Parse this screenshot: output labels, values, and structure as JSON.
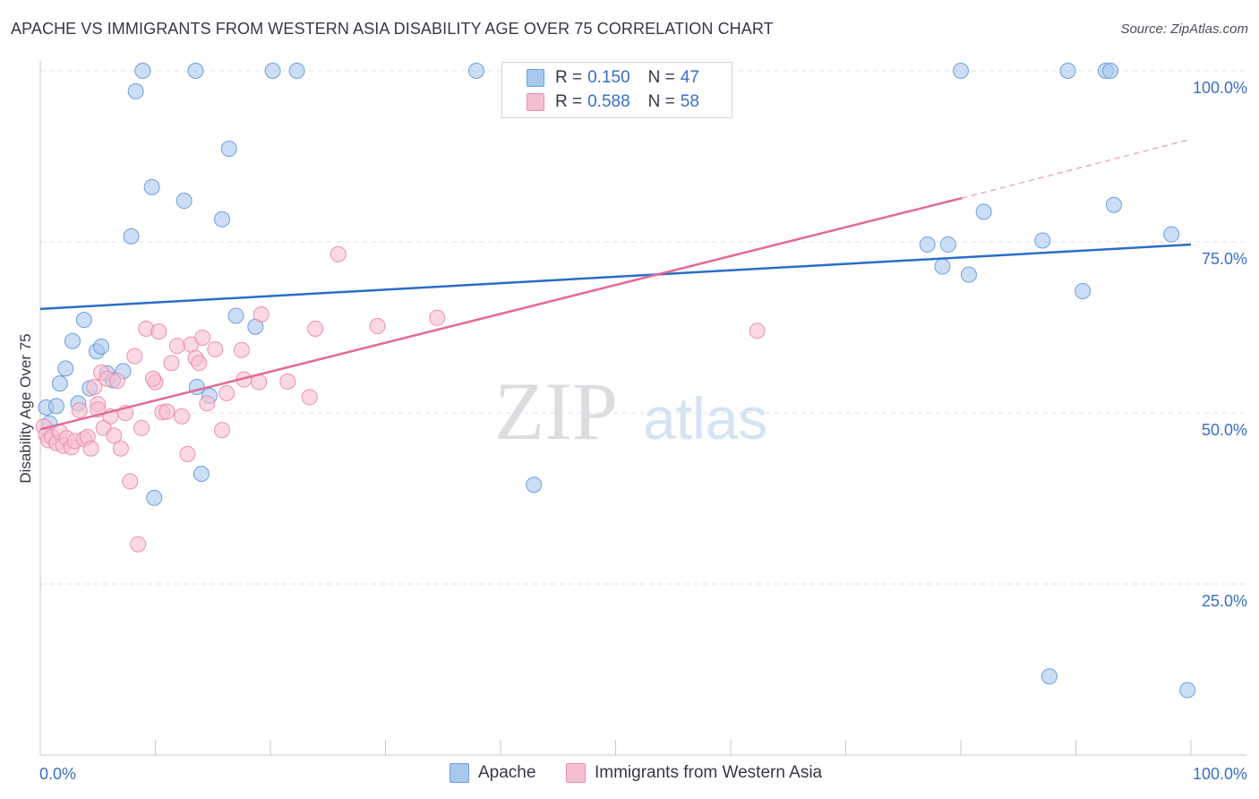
{
  "title": "APACHE VS IMMIGRANTS FROM WESTERN ASIA DISABILITY AGE OVER 75 CORRELATION CHART",
  "source": "Source: ZipAtlas.com",
  "watermark": {
    "zip": "ZIP",
    "atlas": "atlas"
  },
  "legend": {
    "apache": {
      "r_label": "R =",
      "r_value": "0.150",
      "n_label": "N =",
      "n_value": "47"
    },
    "immigrants": {
      "r_label": "R =",
      "r_value": "0.588",
      "n_label": "N =",
      "n_value": "58"
    }
  },
  "bottom_legend": {
    "apache": "Apache",
    "immigrants": "Immigrants from Western Asia"
  },
  "colors": {
    "apache_fill": "#a9c8ee",
    "apache_stroke": "#6f9fdc",
    "apache_line": "#2a6dc8",
    "immigrants_fill": "#f6bfd0",
    "immigrants_stroke": "#ec8fae",
    "immigrants_line": "#e26a97",
    "axis_text": "#3a6fc4",
    "grid": "#dfe2e6"
  },
  "chart_data": {
    "type": "scatter",
    "title": "APACHE VS IMMIGRANTS FROM WESTERN ASIA DISABILITY AGE OVER 75 CORRELATION CHART",
    "xlabel": "",
    "ylabel": "Disability Age Over 75",
    "xlim": [
      0,
      100
    ],
    "ylim": [
      0,
      105
    ],
    "x_tick_labels": [
      "0.0%",
      "100.0%"
    ],
    "y_ticks": [
      25,
      50,
      75,
      100
    ],
    "y_tick_labels": [
      "25.0%",
      "50.0%",
      "75.0%",
      "100.0%"
    ],
    "grid": true,
    "legend_position": "top-center",
    "series": [
      {
        "name": "Apache",
        "r": 0.15,
        "n": 47,
        "trend": {
          "x": [
            0,
            100
          ],
          "y": [
            65.2,
            74.6
          ],
          "dashed_from": null
        },
        "points": [
          [
            0.5,
            50.8
          ],
          [
            0.8,
            48.5
          ],
          [
            1.4,
            51.0
          ],
          [
            1.7,
            54.3
          ],
          [
            2.2,
            56.5
          ],
          [
            2.8,
            60.5
          ],
          [
            3.3,
            51.4
          ],
          [
            3.8,
            63.6
          ],
          [
            4.3,
            53.6
          ],
          [
            4.9,
            59.0
          ],
          [
            5.3,
            59.7
          ],
          [
            5.8,
            55.8
          ],
          [
            6.3,
            54.8
          ],
          [
            7.2,
            56.1
          ],
          [
            7.9,
            75.8
          ],
          [
            8.3,
            97.0
          ],
          [
            8.9,
            100.0
          ],
          [
            9.7,
            83.0
          ],
          [
            9.9,
            37.6
          ],
          [
            12.5,
            81.0
          ],
          [
            13.5,
            100.0
          ],
          [
            13.6,
            53.8
          ],
          [
            14.0,
            41.1
          ],
          [
            14.7,
            52.5
          ],
          [
            15.8,
            78.3
          ],
          [
            16.4,
            88.6
          ],
          [
            17.0,
            64.2
          ],
          [
            18.7,
            62.6
          ],
          [
            20.2,
            100.0
          ],
          [
            22.3,
            100.0
          ],
          [
            37.9,
            100.0
          ],
          [
            42.9,
            39.5
          ],
          [
            77.1,
            74.6
          ],
          [
            78.4,
            71.4
          ],
          [
            78.9,
            74.6
          ],
          [
            80.0,
            100.0
          ],
          [
            80.7,
            70.2
          ],
          [
            82.0,
            79.4
          ],
          [
            87.1,
            75.2
          ],
          [
            87.7,
            11.5
          ],
          [
            89.3,
            100.0
          ],
          [
            90.6,
            67.8
          ],
          [
            92.6,
            100.0
          ],
          [
            93.0,
            100.0
          ],
          [
            93.3,
            80.4
          ],
          [
            98.3,
            76.1
          ],
          [
            99.7,
            9.5
          ]
        ]
      },
      {
        "name": "Immigrants from Western Asia",
        "r": 0.588,
        "n": 58,
        "trend": {
          "x": [
            0,
            80.1
          ],
          "y": [
            47.6,
            81.4
          ],
          "dash_x": [
            80.1,
            100
          ],
          "dash_y": [
            81.4,
            90.0
          ]
        },
        "points": [
          [
            0.3,
            48.0
          ],
          [
            0.5,
            46.8
          ],
          [
            0.7,
            46.0
          ],
          [
            1.0,
            46.5
          ],
          [
            1.4,
            45.6
          ],
          [
            1.7,
            47.2
          ],
          [
            2.0,
            45.2
          ],
          [
            2.3,
            46.3
          ],
          [
            2.7,
            45.0
          ],
          [
            3.0,
            45.9
          ],
          [
            3.4,
            50.4
          ],
          [
            3.8,
            46.2
          ],
          [
            4.1,
            46.5
          ],
          [
            4.4,
            44.8
          ],
          [
            4.7,
            53.8
          ],
          [
            5.0,
            51.3
          ],
          [
            5.3,
            55.9
          ],
          [
            5.5,
            47.8
          ],
          [
            5.8,
            55.0
          ],
          [
            6.1,
            49.5
          ],
          [
            6.4,
            46.7
          ],
          [
            6.7,
            54.7
          ],
          [
            7.0,
            44.8
          ],
          [
            7.4,
            50.0
          ],
          [
            7.8,
            40.0
          ],
          [
            8.2,
            58.3
          ],
          [
            8.5,
            30.8
          ],
          [
            8.8,
            47.8
          ],
          [
            9.2,
            62.3
          ],
          [
            10.0,
            54.5
          ],
          [
            10.3,
            61.9
          ],
          [
            10.6,
            50.1
          ],
          [
            11.0,
            50.2
          ],
          [
            11.4,
            57.3
          ],
          [
            11.9,
            59.8
          ],
          [
            12.3,
            49.5
          ],
          [
            12.8,
            44.0
          ],
          [
            13.1,
            60.0
          ],
          [
            13.5,
            58.0
          ],
          [
            13.8,
            57.3
          ],
          [
            14.1,
            61.0
          ],
          [
            14.5,
            51.4
          ],
          [
            15.2,
            59.3
          ],
          [
            15.8,
            47.5
          ],
          [
            16.2,
            52.9
          ],
          [
            17.5,
            59.2
          ],
          [
            17.7,
            54.9
          ],
          [
            19.0,
            54.5
          ],
          [
            19.2,
            64.4
          ],
          [
            21.5,
            54.6
          ],
          [
            23.4,
            52.3
          ],
          [
            23.9,
            62.3
          ],
          [
            25.9,
            73.2
          ],
          [
            29.3,
            62.7
          ],
          [
            34.5,
            63.9
          ],
          [
            62.3,
            62.0
          ],
          [
            5.0,
            50.5
          ],
          [
            9.8,
            55.0
          ]
        ]
      }
    ]
  }
}
